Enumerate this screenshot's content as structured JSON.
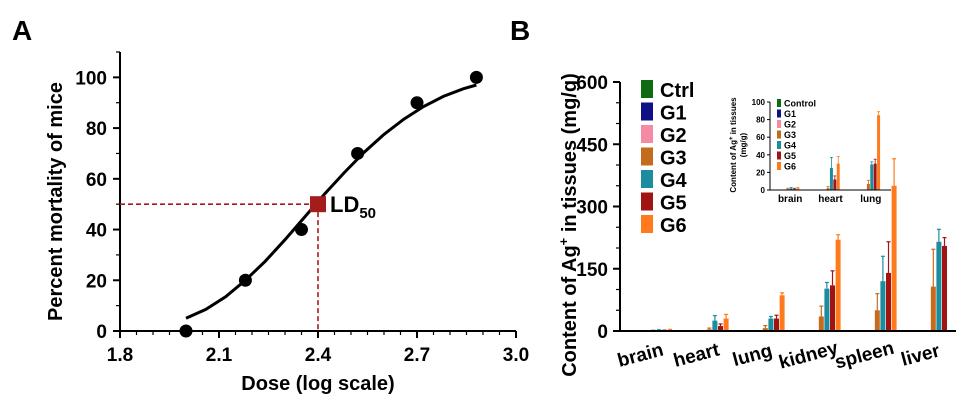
{
  "chart_data": [
    {
      "panel": "A",
      "type": "scatter",
      "xlabel": "Dose (log scale)",
      "ylabel": "Percent mortality of mice",
      "xlim": [
        1.8,
        3.0
      ],
      "ylim": [
        0,
        110
      ],
      "xticks": [
        "1.8",
        "2.1",
        "2.4",
        "2.7",
        "3.0"
      ],
      "yticks": [
        "0",
        "20",
        "40",
        "60",
        "80",
        "100"
      ],
      "points": [
        {
          "x": 2.0,
          "y": 0
        },
        {
          "x": 2.18,
          "y": 20
        },
        {
          "x": 2.35,
          "y": 40
        },
        {
          "x": 2.52,
          "y": 70
        },
        {
          "x": 2.7,
          "y": 90
        },
        {
          "x": 2.88,
          "y": 100
        }
      ],
      "fit_curve": [
        {
          "x": 2.0,
          "y": 5
        },
        {
          "x": 2.06,
          "y": 8.5
        },
        {
          "x": 2.12,
          "y": 13.5
        },
        {
          "x": 2.18,
          "y": 20
        },
        {
          "x": 2.24,
          "y": 27.5
        },
        {
          "x": 2.3,
          "y": 36
        },
        {
          "x": 2.36,
          "y": 45
        },
        {
          "x": 2.42,
          "y": 54
        },
        {
          "x": 2.48,
          "y": 62.5
        },
        {
          "x": 2.54,
          "y": 70.5
        },
        {
          "x": 2.6,
          "y": 77.5
        },
        {
          "x": 2.66,
          "y": 83.5
        },
        {
          "x": 2.72,
          "y": 88.5
        },
        {
          "x": 2.78,
          "y": 92.5
        },
        {
          "x": 2.84,
          "y": 95.5
        },
        {
          "x": 2.88,
          "y": 97
        }
      ],
      "ld50": {
        "x": 2.4,
        "y": 50,
        "label": "LD",
        "subscript": "50"
      },
      "colors": {
        "point": "#000000",
        "curve": "#000000",
        "ld50": "#a51c1c"
      }
    },
    {
      "panel": "B",
      "type": "bar",
      "ylabel_prefix": "Content of Ag",
      "ylabel_sup": "+",
      "ylabel_suffix": " in tissues (mg/g)",
      "ylim": [
        0,
        600
      ],
      "yticks": [
        "0",
        "150",
        "300",
        "450",
        "600"
      ],
      "categories": [
        "brain",
        "heart",
        "lung",
        "kidney",
        "spleen",
        "liver"
      ],
      "legend": [
        "Ctrl",
        "G1",
        "G2",
        "G3",
        "G4",
        "G5",
        "G6"
      ],
      "colors": [
        "#0e6b14",
        "#0f0f86",
        "#f48aa4",
        "#c56b1e",
        "#1c8c9e",
        "#a01414",
        "#ff7a1c"
      ],
      "series": [
        {
          "name": "Ctrl",
          "values": [
            0,
            0,
            0,
            0,
            0,
            0
          ],
          "errors": [
            0,
            0,
            0,
            0,
            0,
            0
          ]
        },
        {
          "name": "G1",
          "values": [
            0,
            0,
            0,
            0,
            0,
            0
          ],
          "errors": [
            0,
            0,
            0,
            0,
            0,
            0
          ]
        },
        {
          "name": "G2",
          "values": [
            0,
            0,
            0,
            0,
            0,
            0
          ],
          "errors": [
            0,
            0,
            0,
            0,
            0,
            0
          ]
        },
        {
          "name": "G3",
          "values": [
            1,
            4,
            7,
            35,
            50,
            107
          ],
          "errors": [
            1,
            3,
            6,
            25,
            40,
            90
          ]
        },
        {
          "name": "G4",
          "values": [
            2,
            25,
            30,
            102,
            120,
            215
          ],
          "errors": [
            1,
            12,
            5,
            15,
            60,
            30
          ]
        },
        {
          "name": "G5",
          "values": [
            1,
            12,
            30,
            110,
            140,
            205
          ],
          "errors": [
            1,
            5,
            8,
            35,
            75,
            20
          ]
        },
        {
          "name": "G6",
          "values": [
            2,
            30,
            86,
            220,
            350,
            0
          ],
          "errors": [
            2,
            10,
            6,
            12,
            65,
            0
          ]
        }
      ],
      "inset": {
        "ylabel_prefix": "Content of Ag",
        "ylabel_sup": "+",
        "ylabel_suffix": " in tissues",
        "ylabel_line2": "(mg/g)",
        "ylim": [
          0,
          100
        ],
        "yticks": [
          "0",
          "20",
          "40",
          "60",
          "80",
          "100"
        ],
        "categories": [
          "brain",
          "heart",
          "lung"
        ],
        "legend": [
          "Control",
          "G1",
          "G2",
          "G3",
          "G4",
          "G5",
          "G6"
        ],
        "series": [
          {
            "name": "Control",
            "values": [
              0,
              0,
              0
            ],
            "errors": [
              0,
              0,
              0
            ]
          },
          {
            "name": "G1",
            "values": [
              0,
              0,
              0
            ],
            "errors": [
              0,
              0,
              0
            ]
          },
          {
            "name": "G2",
            "values": [
              0,
              0,
              0
            ],
            "errors": [
              0,
              0,
              0
            ]
          },
          {
            "name": "G3",
            "values": [
              1,
              2,
              7
            ],
            "errors": [
              1,
              2,
              4
            ]
          },
          {
            "name": "G4",
            "values": [
              2,
              25,
              29
            ],
            "errors": [
              1,
              12,
              3
            ]
          },
          {
            "name": "G5",
            "values": [
              1,
              12,
              30
            ],
            "errors": [
              1,
              4,
              5
            ]
          },
          {
            "name": "G6",
            "values": [
              2,
              30,
              85
            ],
            "errors": [
              1,
              8,
              4
            ]
          }
        ]
      }
    }
  ]
}
